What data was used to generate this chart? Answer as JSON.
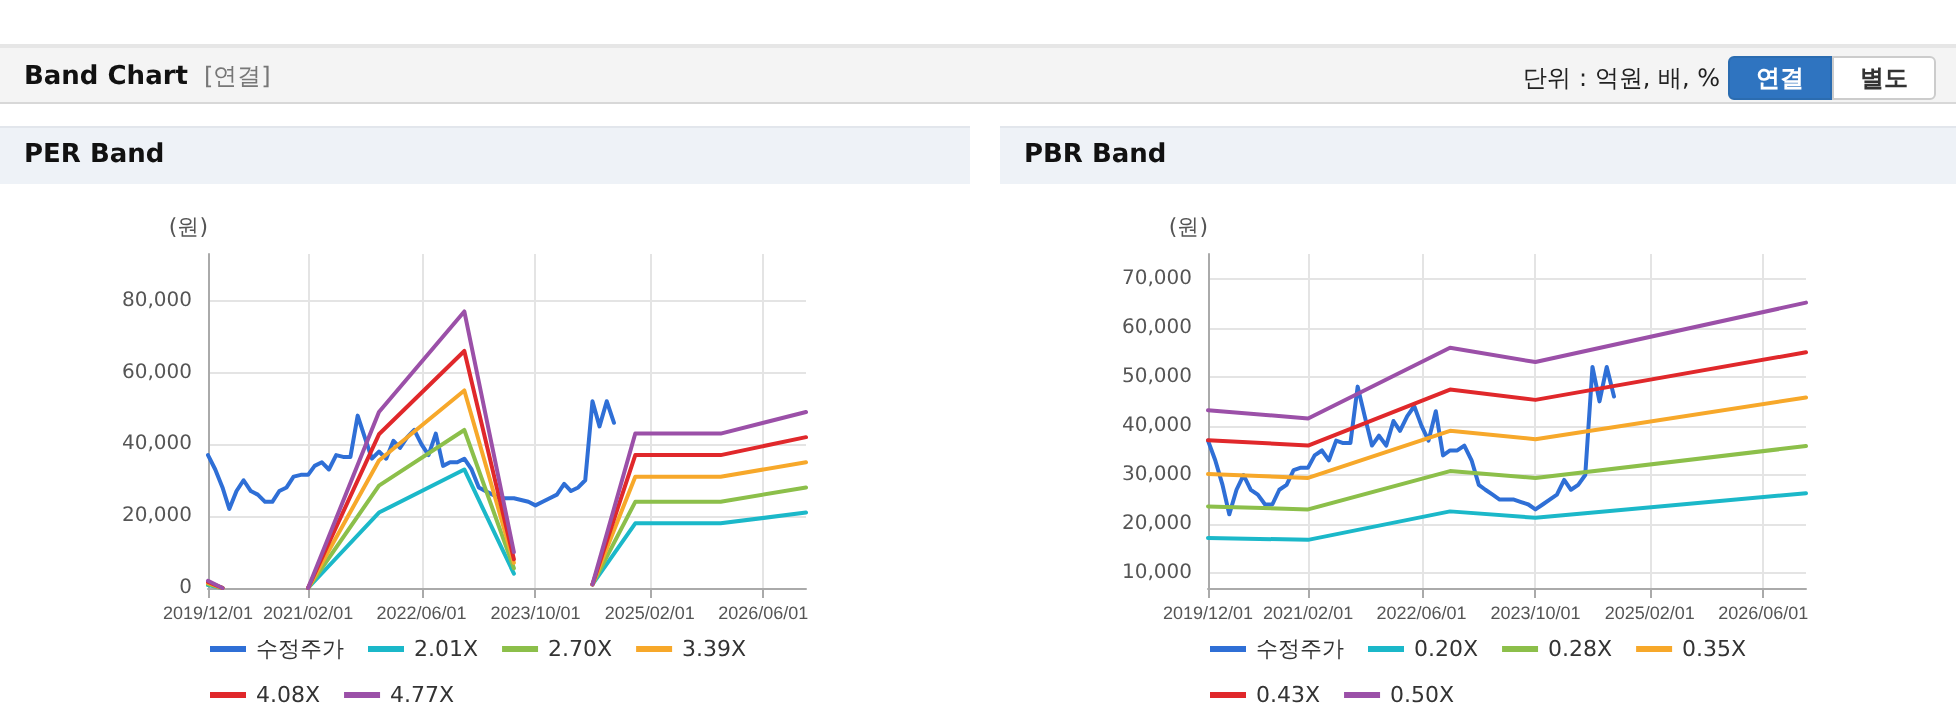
{
  "chart_data": [
    {
      "type": "other",
      "title": "Band Chart",
      "subtitle": "[연결]",
      "annotations": [
        "단위 : 억원, 배, %",
        "연결",
        "별도"
      ]
    },
    {
      "type": "line",
      "title": "PER Band",
      "ylabel": "(원)",
      "legend": "bottom",
      "grid": true,
      "marker": "none",
      "line_style": "solid",
      "xlim": [
        "2019-12-01",
        "2026-12-01"
      ],
      "xticks": [
        {
          "value": "2019-12-01",
          "label": "2019/12/01"
        },
        {
          "value": "2021-02-01",
          "label": "2021/02/01"
        },
        {
          "value": "2022-06-01",
          "label": "2022/06/01"
        },
        {
          "value": "2023-10-01",
          "label": "2023/10/01"
        },
        {
          "value": "2025-02-01",
          "label": "2025/02/01"
        },
        {
          "value": "2026-06-01",
          "label": "2026/06/01"
        }
      ],
      "ylim": [
        0,
        93000
      ],
      "yticks": [
        {
          "value": 0,
          "label": "0"
        },
        {
          "value": 20000,
          "label": "20,000"
        },
        {
          "value": 40000,
          "label": "40,000"
        },
        {
          "value": 60000,
          "label": "60,000"
        },
        {
          "value": 80000,
          "label": "80,000"
        }
      ],
      "series": [
        {
          "name": "수정주가",
          "color": "#2f6fd6",
          "x": [
            "2019-12",
            "2020-01",
            "2020-02",
            "2020-03",
            "2020-04",
            "2020-05",
            "2020-06",
            "2020-07",
            "2020-08",
            "2020-09",
            "2020-10",
            "2020-11",
            "2020-12",
            "2021-01",
            "2021-02",
            "2021-03",
            "2021-04",
            "2021-05",
            "2021-06",
            "2021-07",
            "2021-08",
            "2021-09",
            "2021-10",
            "2021-11",
            "2021-12",
            "2022-01",
            "2022-02",
            "2022-03",
            "2022-04",
            "2022-05",
            "2022-06",
            "2022-07",
            "2022-08",
            "2022-09",
            "2022-10",
            "2022-11",
            "2022-12",
            "2023-01",
            "2023-02",
            "2023-03",
            "2023-04",
            "2023-05",
            "2023-06",
            "2023-07",
            "2023-08",
            "2023-09",
            "2023-10",
            "2023-11",
            "2023-12",
            "2024-01",
            "2024-02",
            "2024-03",
            "2024-04",
            "2024-05",
            "2024-06",
            "2024-07",
            "2024-08",
            "2024-09"
          ],
          "values": [
            37000,
            33000,
            28000,
            22000,
            27000,
            30000,
            27000,
            26000,
            24000,
            24000,
            27000,
            28000,
            31000,
            31500,
            31500,
            34000,
            35000,
            33000,
            37000,
            36500,
            36500,
            48000,
            42000,
            36000,
            38000,
            36000,
            41000,
            39000,
            42000,
            44000,
            40000,
            37000,
            43000,
            34000,
            35000,
            35000,
            36000,
            33000,
            28000,
            27000,
            26000,
            25000,
            25000,
            25000,
            24500,
            24000,
            23000,
            24000,
            25000,
            26000,
            29000,
            27000,
            28000,
            30000,
            52000,
            45000,
            52000,
            46000
          ]
        },
        {
          "name": "2.01X",
          "color": "#1bb8c9",
          "x": [
            "2019-12",
            "2020-02",
            "2020-08",
            "2021-02",
            "2021-12",
            "2022-12",
            "2023-07",
            "2024-01",
            "2024-06",
            "2024-12",
            "2025-12",
            "2026-12"
          ],
          "values": [
            800,
            0,
            null,
            0,
            21000,
            33000,
            4000,
            null,
            1000,
            18000,
            18000,
            21000
          ]
        },
        {
          "name": "2.70X",
          "color": "#8cbf4a",
          "x": [
            "2019-12",
            "2020-02",
            "2020-08",
            "2021-02",
            "2021-12",
            "2022-12",
            "2023-07",
            "2024-01",
            "2024-06",
            "2024-12",
            "2025-12",
            "2026-12"
          ],
          "values": [
            1100,
            0,
            null,
            0,
            28500,
            44000,
            5500,
            null,
            1000,
            24000,
            24000,
            28000
          ]
        },
        {
          "name": "3.39X",
          "color": "#f7a82a",
          "x": [
            "2019-12",
            "2020-02",
            "2020-08",
            "2021-02",
            "2021-12",
            "2022-12",
            "2023-07",
            "2024-01",
            "2024-06",
            "2024-12",
            "2025-12",
            "2026-12"
          ],
          "values": [
            1400,
            0,
            null,
            0,
            35500,
            55000,
            7000,
            null,
            1000,
            31000,
            31000,
            35000
          ]
        },
        {
          "name": "4.08X",
          "color": "#e0282b",
          "x": [
            "2019-12",
            "2020-02",
            "2020-08",
            "2021-02",
            "2021-12",
            "2022-12",
            "2023-07",
            "2024-01",
            "2024-06",
            "2024-12",
            "2025-12",
            "2026-12"
          ],
          "values": [
            1700,
            0,
            null,
            0,
            42800,
            66000,
            8000,
            null,
            1000,
            37000,
            37000,
            42000
          ]
        },
        {
          "name": "4.77X",
          "color": "#9b50a8",
          "x": [
            "2019-12",
            "2020-02",
            "2020-08",
            "2021-02",
            "2021-12",
            "2022-12",
            "2023-07",
            "2024-01",
            "2024-06",
            "2024-12",
            "2025-12",
            "2026-12"
          ],
          "values": [
            2000,
            0,
            null,
            0,
            49000,
            77000,
            10000,
            null,
            1000,
            43000,
            43000,
            49000
          ]
        }
      ]
    },
    {
      "type": "line",
      "title": "PBR Band",
      "ylabel": "(원)",
      "legend": "bottom",
      "grid": true,
      "marker": "none",
      "line_style": "solid",
      "xlim": [
        "2019-12-01",
        "2026-12-01"
      ],
      "xticks": [
        {
          "value": "2019-12-01",
          "label": "2019/12/01"
        },
        {
          "value": "2021-02-01",
          "label": "2021/02/01"
        },
        {
          "value": "2022-06-01",
          "label": "2022/06/01"
        },
        {
          "value": "2023-10-01",
          "label": "2023/10/01"
        },
        {
          "value": "2025-02-01",
          "label": "2025/02/01"
        },
        {
          "value": "2026-06-01",
          "label": "2026/06/01"
        }
      ],
      "ylim": [
        7000,
        75000
      ],
      "yticks": [
        {
          "value": 10000,
          "label": "10,000"
        },
        {
          "value": 20000,
          "label": "20,000"
        },
        {
          "value": 30000,
          "label": "30,000"
        },
        {
          "value": 40000,
          "label": "40,000"
        },
        {
          "value": 50000,
          "label": "50,000"
        },
        {
          "value": 60000,
          "label": "60,000"
        },
        {
          "value": 70000,
          "label": "70,000"
        }
      ],
      "series": [
        {
          "name": "수정주가",
          "color": "#2f6fd6",
          "x": [
            "2019-12",
            "2020-01",
            "2020-02",
            "2020-03",
            "2020-04",
            "2020-05",
            "2020-06",
            "2020-07",
            "2020-08",
            "2020-09",
            "2020-10",
            "2020-11",
            "2020-12",
            "2021-01",
            "2021-02",
            "2021-03",
            "2021-04",
            "2021-05",
            "2021-06",
            "2021-07",
            "2021-08",
            "2021-09",
            "2021-10",
            "2021-11",
            "2021-12",
            "2022-01",
            "2022-02",
            "2022-03",
            "2022-04",
            "2022-05",
            "2022-06",
            "2022-07",
            "2022-08",
            "2022-09",
            "2022-10",
            "2022-11",
            "2022-12",
            "2023-01",
            "2023-02",
            "2023-03",
            "2023-04",
            "2023-05",
            "2023-06",
            "2023-07",
            "2023-08",
            "2023-09",
            "2023-10",
            "2023-11",
            "2023-12",
            "2024-01",
            "2024-02",
            "2024-03",
            "2024-04",
            "2024-05",
            "2024-06",
            "2024-07",
            "2024-08",
            "2024-09"
          ],
          "values": [
            37000,
            33000,
            28000,
            22000,
            27000,
            30000,
            27000,
            26000,
            24000,
            24000,
            27000,
            28000,
            31000,
            31500,
            31500,
            34000,
            35000,
            33000,
            37000,
            36500,
            36500,
            48000,
            42000,
            36000,
            38000,
            36000,
            41000,
            39000,
            42000,
            44000,
            40000,
            37000,
            43000,
            34000,
            35000,
            35000,
            36000,
            33000,
            28000,
            27000,
            26000,
            25000,
            25000,
            25000,
            24500,
            24000,
            23000,
            24000,
            25000,
            26000,
            29000,
            27000,
            28000,
            30000,
            52000,
            45000,
            52000,
            46000
          ]
        },
        {
          "name": "0.20X",
          "color": "#1bb8c9",
          "x": [
            "2019-12",
            "2021-02",
            "2022-10",
            "2023-10",
            "2026-12"
          ],
          "values": [
            17200,
            16800,
            22600,
            21300,
            26300
          ]
        },
        {
          "name": "0.28X",
          "color": "#8cbf4a",
          "x": [
            "2019-12",
            "2021-02",
            "2022-10",
            "2023-10",
            "2026-12"
          ],
          "values": [
            23600,
            23000,
            30800,
            29400,
            35900
          ]
        },
        {
          "name": "0.35X",
          "color": "#f7a82a",
          "x": [
            "2019-12",
            "2021-02",
            "2022-10",
            "2023-10",
            "2026-12"
          ],
          "values": [
            30200,
            29400,
            39000,
            37300,
            45800
          ]
        },
        {
          "name": "0.43X",
          "color": "#e0282b",
          "x": [
            "2019-12",
            "2021-02",
            "2022-10",
            "2023-10",
            "2026-12"
          ],
          "values": [
            37100,
            36000,
            47400,
            45300,
            55000
          ]
        },
        {
          "name": "0.50X",
          "color": "#9b50a8",
          "x": [
            "2019-12",
            "2021-02",
            "2022-10",
            "2023-10",
            "2026-12"
          ],
          "values": [
            43200,
            41500,
            55900,
            53000,
            65100
          ]
        }
      ]
    }
  ]
}
